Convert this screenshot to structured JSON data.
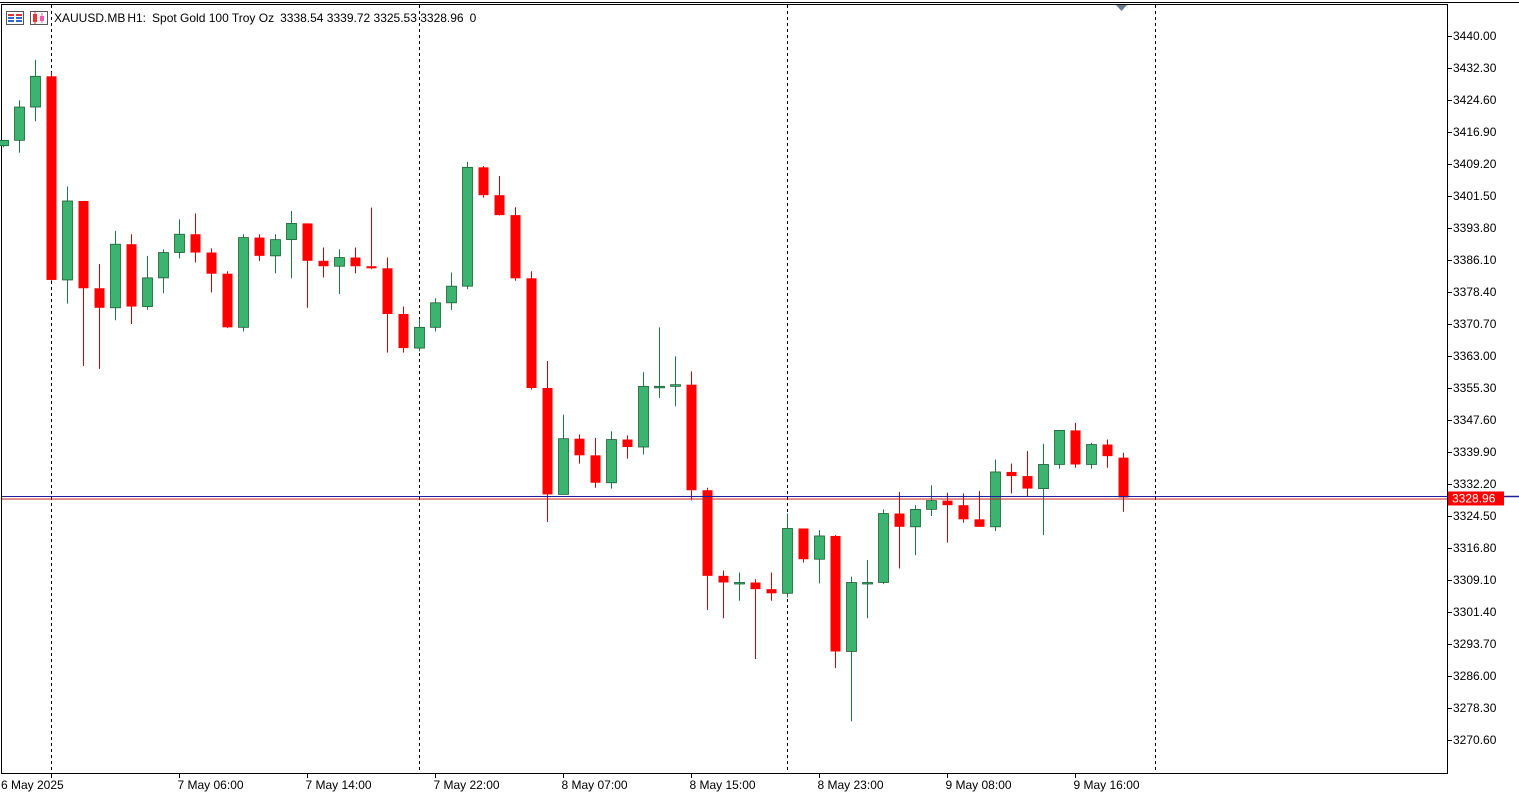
{
  "header": {
    "symbol": "XAUUSD.MB",
    "timeframe": "H1:",
    "description": "Spot Gold 100 Troy Oz",
    "ohlc": "3338.54 3339.72 3325.53 3328.96",
    "volume": "0",
    "icons": [
      "chart-list-icon",
      "chart-type-icon"
    ]
  },
  "price_label": "3328.96",
  "colors": {
    "bull": "#3cb371",
    "bear": "#ff0000",
    "bid_line": "#1f1f9a",
    "ask_line": "#cc2222",
    "price_tag_bg": "#ff0000",
    "grid_separator": "#000000"
  },
  "chart_data": {
    "type": "candlestick",
    "symbol": "XAUUSD.MB",
    "timeframe": "H1",
    "ylim": [
      3264,
      3448
    ],
    "y_ticks": [
      "3440.00",
      "3432.30",
      "3424.60",
      "3416.90",
      "3409.20",
      "3401.50",
      "3393.80",
      "3386.10",
      "3378.40",
      "3370.70",
      "3363.00",
      "3355.30",
      "3347.60",
      "3339.90",
      "3332.20",
      "3324.50",
      "3316.80",
      "3309.10",
      "3301.40",
      "3293.70",
      "3286.00",
      "3278.30",
      "3270.60"
    ],
    "x_labels": [
      {
        "index": 3,
        "text": "6 May 2025"
      },
      {
        "index": 11,
        "text": "7 May 06:00"
      },
      {
        "index": 19,
        "text": "7 May 14:00"
      },
      {
        "index": 27,
        "text": "7 May 22:00"
      },
      {
        "index": 35,
        "text": "8 May 07:00"
      },
      {
        "index": 43,
        "text": "8 May 15:00"
      },
      {
        "index": 51,
        "text": "8 May 23:00"
      },
      {
        "index": 59,
        "text": "9 May 08:00"
      },
      {
        "index": 67,
        "text": "9 May 16:00"
      }
    ],
    "day_separators": [
      3,
      26,
      49,
      72
    ],
    "last_price": 3328.96,
    "candles": [
      [
        3413.6,
        3414.9,
        3413.2,
        3414.9
      ],
      [
        3414.9,
        3424.5,
        3411.9,
        3422.9
      ],
      [
        3422.9,
        3434.3,
        3419.5,
        3430.3
      ],
      [
        3430.3,
        3431.3,
        3381.1,
        3381.3
      ],
      [
        3381.3,
        3403.8,
        3375.6,
        3400.3
      ],
      [
        3400.3,
        3400.3,
        3360.6,
        3379.3
      ],
      [
        3379.3,
        3385.1,
        3359.9,
        3374.6
      ],
      [
        3374.6,
        3393.1,
        3371.6,
        3389.9
      ],
      [
        3389.9,
        3392.3,
        3370.7,
        3374.9
      ],
      [
        3374.9,
        3387.1,
        3374.1,
        3381.8
      ],
      [
        3381.8,
        3388.7,
        3378.1,
        3387.9
      ],
      [
        3387.9,
        3395.9,
        3386.5,
        3392.3
      ],
      [
        3392.3,
        3397.3,
        3385.5,
        3387.9
      ],
      [
        3387.9,
        3388.9,
        3378.3,
        3382.8
      ],
      [
        3382.8,
        3383.4,
        3369.7,
        3369.9
      ],
      [
        3369.9,
        3392.3,
        3368.9,
        3391.5
      ],
      [
        3391.5,
        3392.3,
        3385.9,
        3387.1
      ],
      [
        3387.1,
        3392.3,
        3382.9,
        3391.0
      ],
      [
        3391.0,
        3397.9,
        3381.7,
        3394.9
      ],
      [
        3394.9,
        3394.9,
        3374.6,
        3385.9
      ],
      [
        3385.9,
        3389.1,
        3381.9,
        3384.6
      ],
      [
        3384.6,
        3388.7,
        3377.9,
        3386.7
      ],
      [
        3386.7,
        3389.1,
        3382.9,
        3384.6
      ],
      [
        3384.6,
        3398.7,
        3383.9,
        3384.1
      ],
      [
        3384.1,
        3386.7,
        3363.8,
        3373.1
      ],
      [
        3373.1,
        3374.9,
        3363.8,
        3364.9
      ],
      [
        3364.9,
        3371.9,
        3364.1,
        3369.9
      ],
      [
        3369.9,
        3376.9,
        3368.9,
        3375.8
      ],
      [
        3375.8,
        3383.1,
        3374.1,
        3379.8
      ],
      [
        3379.8,
        3409.7,
        3379.1,
        3408.4
      ],
      [
        3408.4,
        3408.7,
        3401.1,
        3401.7
      ],
      [
        3401.7,
        3406.3,
        3396.8,
        3396.9
      ],
      [
        3396.9,
        3398.8,
        3381.1,
        3381.7
      ],
      [
        3381.7,
        3383.4,
        3354.9,
        3355.3
      ],
      [
        3355.3,
        3361.8,
        3323.1,
        3329.7
      ],
      [
        3329.7,
        3348.9,
        3330.2,
        3343.1
      ],
      [
        3343.1,
        3344.1,
        3337.1,
        3339.1
      ],
      [
        3339.1,
        3343.3,
        3331.3,
        3332.5
      ],
      [
        3332.5,
        3344.9,
        3331.1,
        3342.9
      ],
      [
        3342.9,
        3343.9,
        3338.3,
        3341.1
      ],
      [
        3341.1,
        3359.1,
        3339.3,
        3355.7
      ],
      [
        3355.7,
        3369.9,
        3352.9,
        3355.7
      ],
      [
        3355.7,
        3362.9,
        3350.9,
        3356.1
      ],
      [
        3356.1,
        3359.3,
        3328.3,
        3330.7
      ],
      [
        3330.7,
        3331.3,
        3301.9,
        3310.1
      ],
      [
        3310.1,
        3311.4,
        3299.9,
        3308.5
      ],
      [
        3308.5,
        3310.9,
        3304.1,
        3308.5
      ],
      [
        3308.5,
        3309.3,
        3290.1,
        3306.9
      ],
      [
        3306.9,
        3310.9,
        3304.1,
        3305.9
      ],
      [
        3305.9,
        3325.1,
        3304.9,
        3321.5
      ],
      [
        3321.5,
        3321.5,
        3313.3,
        3314.1
      ],
      [
        3314.1,
        3321.1,
        3308.3,
        3319.7
      ],
      [
        3319.7,
        3319.9,
        3287.9,
        3291.9
      ],
      [
        3291.9,
        3309.9,
        3275.1,
        3308.5
      ],
      [
        3308.5,
        3313.9,
        3299.9,
        3308.5
      ],
      [
        3308.5,
        3326.1,
        3308.1,
        3325.1
      ],
      [
        3325.1,
        3330.3,
        3311.9,
        3321.9
      ],
      [
        3321.9,
        3327.1,
        3315.1,
        3326.1
      ],
      [
        3326.1,
        3331.9,
        3324.5,
        3328.2
      ],
      [
        3328.2,
        3330.1,
        3318.1,
        3327.1
      ],
      [
        3327.1,
        3329.9,
        3322.9,
        3323.7
      ],
      [
        3323.7,
        3330.5,
        3321.9,
        3321.9
      ],
      [
        3321.9,
        3338.1,
        3320.9,
        3335.1
      ],
      [
        3335.1,
        3337.1,
        3329.9,
        3334.1
      ],
      [
        3334.1,
        3340.1,
        3329.1,
        3331.1
      ],
      [
        3331.1,
        3341.9,
        3319.9,
        3336.9
      ],
      [
        3336.9,
        3345.1,
        3335.9,
        3345.1
      ],
      [
        3345.1,
        3346.9,
        3336.1,
        3336.9
      ],
      [
        3336.9,
        3342.1,
        3335.9,
        3341.7
      ],
      [
        3341.7,
        3342.9,
        3336.1,
        3338.9
      ],
      [
        3338.54,
        3339.72,
        3325.53,
        3328.96
      ]
    ]
  }
}
